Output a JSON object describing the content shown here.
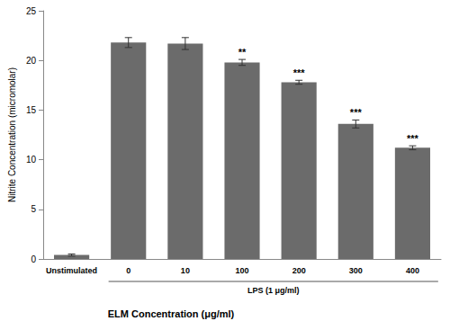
{
  "chart_data": {
    "type": "bar",
    "y_label": "Nitrite Concentration (micromolar)",
    "x_label": "ELM Concentration (μg/ml)",
    "group": {
      "label": "LPS (1 μg/ml)",
      "from": "0",
      "to": "400"
    },
    "categories": [
      "Unstimulated",
      "0",
      "10",
      "100",
      "200",
      "300",
      "400"
    ],
    "values": [
      0.4,
      21.8,
      21.7,
      19.8,
      17.8,
      13.6,
      11.2
    ],
    "errors": [
      0.1,
      0.5,
      0.6,
      0.3,
      0.2,
      0.4,
      0.2
    ],
    "annotations": [
      null,
      null,
      null,
      "**",
      "***",
      "***",
      "***"
    ],
    "color": "#6b6b6b",
    "ylim": [
      0,
      25
    ],
    "yticks": [
      0,
      5,
      10,
      15,
      20,
      25
    ],
    "grid": false
  }
}
